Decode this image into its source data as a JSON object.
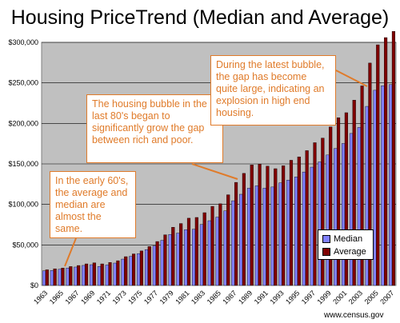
{
  "chart_data": {
    "type": "bar",
    "title": "Housing PriceTrend (Median and Average)",
    "ylim": [
      0,
      300000
    ],
    "yticks": [
      "$0",
      "$50,000",
      "$100,000",
      "$150,000",
      "$200,000",
      "$250,000",
      "$300,000"
    ],
    "ytick_values": [
      0,
      50000,
      100000,
      150000,
      200000,
      250000,
      300000
    ],
    "categories": [
      "1963",
      "1964",
      "1965",
      "1966",
      "1967",
      "1968",
      "1969",
      "1970",
      "1971",
      "1972",
      "1973",
      "1974",
      "1975",
      "1976",
      "1977",
      "1978",
      "1979",
      "1980",
      "1981",
      "1982",
      "1983",
      "1984",
      "1985",
      "1986",
      "1987",
      "1988",
      "1989",
      "1990",
      "1991",
      "1992",
      "1993",
      "1994",
      "1995",
      "1996",
      "1997",
      "1998",
      "1999",
      "2000",
      "2001",
      "2002",
      "2003",
      "2004",
      "2005",
      "2006",
      "2007"
    ],
    "xtick_labels": [
      "1963",
      "1965",
      "1967",
      "1969",
      "1971",
      "1973",
      "1975",
      "1977",
      "1979",
      "1981",
      "1983",
      "1985",
      "1987",
      "1989",
      "1991",
      "1993",
      "1995",
      "1997",
      "1999",
      "2001",
      "2003",
      "2005",
      "2007"
    ],
    "series": [
      {
        "name": "Median",
        "color": "#8080ff",
        "values": [
          18000,
          18500,
          20000,
          21400,
          22700,
          24700,
          25600,
          23400,
          25200,
          27600,
          32500,
          35900,
          39300,
          44200,
          48800,
          55700,
          62900,
          64600,
          68900,
          69300,
          75300,
          79900,
          84300,
          92000,
          104500,
          112500,
          120000,
          122900,
          120000,
          121500,
          126500,
          130000,
          133900,
          140000,
          146000,
          152500,
          161000,
          169000,
          175200,
          187600,
          195000,
          221000,
          240900,
          246500,
          247900
        ]
      },
      {
        "name": "Average",
        "color": "#800000",
        "values": [
          19300,
          20500,
          21500,
          23300,
          24600,
          26600,
          27900,
          26600,
          28300,
          30500,
          35500,
          38900,
          42600,
          48000,
          54200,
          62500,
          71800,
          76400,
          83000,
          83900,
          89800,
          97600,
          100800,
          111900,
          127200,
          138300,
          148800,
          149800,
          147200,
          144100,
          147700,
          154500,
          158700,
          166400,
          176200,
          181900,
          195600,
          207000,
          213200,
          228700,
          246300,
          274500,
          297000,
          305900,
          313600
        ]
      }
    ],
    "grid": true,
    "legend": "bottom-right",
    "annotations": [
      "In the early 60's, the average and median are almost the same.",
      "The housing bubble in the last 80's began to significantly grow the gap between rich and poor.",
      "During the latest bubble, the gap has become quite large, indicating an explosion in high end housing."
    ],
    "source": "www.census.gov"
  }
}
